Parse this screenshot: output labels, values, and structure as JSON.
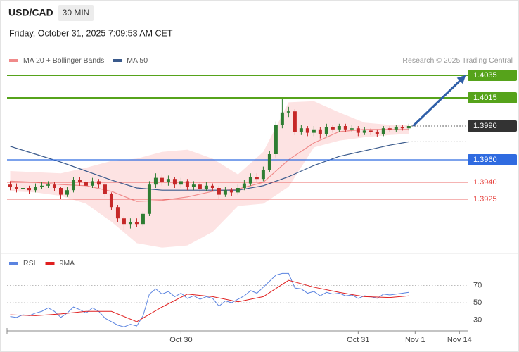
{
  "chart_data": [
    {
      "type": "candlestick",
      "title": "USD/CAD",
      "interval": "30 MIN",
      "subtitle": "Friday, October 31, 2025 7:09:53 AM CET",
      "credit": "Research © 2025 Trading Central",
      "up_color": "#2e7d32",
      "down_color": "#c62828",
      "xlim": [
        -0.5,
        72.3
      ],
      "ylim": [
        1.388,
        1.40425
      ],
      "open": [
        1.3938,
        1.3936,
        1.3934,
        1.3935,
        1.3933,
        1.3936,
        1.3937,
        1.3938,
        1.3935,
        1.3929,
        1.3933,
        1.3942,
        1.394,
        1.3937,
        1.3941,
        1.3938,
        1.393,
        1.3918,
        1.3908,
        1.3903,
        1.3905,
        1.3903,
        1.3912,
        1.3938,
        1.3944,
        1.394,
        1.3943,
        1.3938,
        1.3941,
        1.3936,
        1.3938,
        1.3934,
        1.3937,
        1.3935,
        1.3929,
        1.3933,
        1.3931,
        1.3935,
        1.3939,
        1.3945,
        1.3943,
        1.3951,
        1.3965,
        1.3991,
        1.4002,
        1.4003,
        1.3985,
        1.3988,
        1.3984,
        1.3987,
        1.3983,
        1.3989,
        1.3987,
        1.399,
        1.3987,
        1.3988,
        1.3984,
        1.3986,
        1.3985,
        1.3983,
        1.3988,
        1.3987,
        1.3989,
        1.3988
      ],
      "high": [
        1.3941,
        1.3939,
        1.3938,
        1.3937,
        1.3939,
        1.394,
        1.3941,
        1.394,
        1.3936,
        1.3936,
        1.3945,
        1.3945,
        1.3942,
        1.3944,
        1.3943,
        1.394,
        1.3931,
        1.392,
        1.391,
        1.3908,
        1.3908,
        1.3914,
        1.3941,
        1.3948,
        1.3947,
        1.3946,
        1.3945,
        1.3944,
        1.3943,
        1.3941,
        1.394,
        1.394,
        1.3939,
        1.3937,
        1.3936,
        1.3935,
        1.3938,
        1.3942,
        1.3948,
        1.3948,
        1.3954,
        1.3968,
        1.3994,
        1.4014,
        1.4007,
        1.4005,
        1.3991,
        1.399,
        1.399,
        1.3989,
        1.3992,
        1.3991,
        1.3992,
        1.3992,
        1.3991,
        1.399,
        1.3989,
        1.3988,
        1.3987,
        1.399,
        1.399,
        1.3991,
        1.3991,
        1.3992
      ],
      "low": [
        1.3933,
        1.3931,
        1.3931,
        1.393,
        1.3931,
        1.3934,
        1.3935,
        1.3932,
        1.3925,
        1.3927,
        1.3931,
        1.3937,
        1.3934,
        1.3935,
        1.3935,
        1.3927,
        1.3915,
        1.3905,
        1.3898,
        1.3899,
        1.39,
        1.3901,
        1.391,
        1.3935,
        1.3937,
        1.3937,
        1.3935,
        1.3935,
        1.3933,
        1.3933,
        1.3931,
        1.3932,
        1.3932,
        1.3925,
        1.3927,
        1.3928,
        1.3929,
        1.3933,
        1.3937,
        1.394,
        1.3941,
        1.3949,
        1.3962,
        1.3988,
        1.3998,
        1.3982,
        1.3982,
        1.3981,
        1.3981,
        1.3979,
        1.3981,
        1.3984,
        1.3985,
        1.3985,
        1.3985,
        1.3981,
        1.3982,
        1.3982,
        1.398,
        1.3981,
        1.3985,
        1.3985,
        1.3986,
        1.3986
      ],
      "close": [
        1.3936,
        1.3934,
        1.3935,
        1.3933,
        1.3936,
        1.3937,
        1.3938,
        1.3935,
        1.3929,
        1.3933,
        1.3942,
        1.394,
        1.3937,
        1.3941,
        1.3938,
        1.393,
        1.3918,
        1.3908,
        1.3903,
        1.3905,
        1.3903,
        1.3912,
        1.3938,
        1.3944,
        1.394,
        1.3943,
        1.3938,
        1.3941,
        1.3936,
        1.3938,
        1.3934,
        1.3937,
        1.3935,
        1.3929,
        1.3933,
        1.3931,
        1.3935,
        1.3939,
        1.3945,
        1.3943,
        1.3951,
        1.3965,
        1.3991,
        1.4002,
        1.4003,
        1.3985,
        1.3988,
        1.3984,
        1.3987,
        1.3983,
        1.3989,
        1.3987,
        1.399,
        1.3987,
        1.3988,
        1.3984,
        1.3986,
        1.3985,
        1.3983,
        1.3988,
        1.3987,
        1.3989,
        1.3988,
        1.399
      ],
      "series": [
        {
          "name": "MA 20 + Bollinger Bands",
          "color": "#f08a8a",
          "band_color": "#fde3e3",
          "x": [
            0,
            4,
            8,
            12,
            16,
            20,
            24,
            28,
            32,
            36,
            40,
            44,
            48,
            52,
            56,
            60,
            63
          ],
          "values": [
            1.3941,
            1.394,
            1.3938,
            1.3937,
            1.3932,
            1.3923,
            1.3924,
            1.3927,
            1.3932,
            1.3934,
            1.394,
            1.396,
            1.3975,
            1.3985,
            1.3987,
            1.3987,
            1.3987
          ],
          "upper": [
            1.395,
            1.3949,
            1.3948,
            1.3953,
            1.3959,
            1.3961,
            1.3967,
            1.3969,
            1.3961,
            1.3947,
            1.3967,
            1.4011,
            1.4012,
            1.4002,
            1.3993,
            1.3991,
            1.3991
          ],
          "lower": [
            1.3932,
            1.3931,
            1.3928,
            1.3921,
            1.3905,
            1.3886,
            1.3882,
            1.3884,
            1.3896,
            1.3919,
            1.3921,
            1.3936,
            1.3971,
            1.3977,
            1.398,
            1.3982,
            1.3983
          ]
        },
        {
          "name": "MA 50",
          "color": "#3a5a8c",
          "x": [
            0,
            4,
            8,
            12,
            16,
            20,
            24,
            28,
            32,
            36,
            40,
            44,
            48,
            52,
            56,
            60,
            63
          ],
          "values": [
            1.3972,
            1.3965,
            1.3958,
            1.395,
            1.3942,
            1.3935,
            1.3933,
            1.3933,
            1.3933,
            1.3933,
            1.3937,
            1.3945,
            1.3955,
            1.3963,
            1.3968,
            1.3973,
            1.3976
          ]
        }
      ],
      "levels": [
        {
          "value": 1.4035,
          "label": "1.4035",
          "color": "#56a31b",
          "style": "box"
        },
        {
          "value": 1.4015,
          "label": "1.4015",
          "color": "#56a31b",
          "style": "box"
        },
        {
          "value": 1.399,
          "label": "1.3990",
          "color": "#333333",
          "style": "current"
        },
        {
          "value": 1.396,
          "label": "1.3960",
          "color": "#2f6be0",
          "style": "box"
        },
        {
          "value": 1.394,
          "label": "1.3940",
          "color": "#e53935",
          "style": "text"
        },
        {
          "value": 1.3925,
          "label": "1.3925",
          "color": "#e53935",
          "style": "text"
        }
      ]
    },
    {
      "type": "line",
      "xlim": [
        -0.5,
        72.3
      ],
      "ylim": [
        20,
        100
      ],
      "yticks": [
        70,
        50,
        30
      ],
      "xticks": [
        {
          "value": 27,
          "label": "Oct 30"
        },
        {
          "value": 55,
          "label": "Oct 31"
        },
        {
          "value": 64,
          "label": "Nov 1"
        },
        {
          "value": 71,
          "label": "Nov 14"
        }
      ],
      "series": [
        {
          "name": "RSI",
          "color": "#5b84e0",
          "values": [
            34,
            33,
            36,
            35,
            38,
            40,
            44,
            40,
            33,
            38,
            45,
            42,
            38,
            44,
            40,
            32,
            28,
            24,
            22,
            25,
            23,
            35,
            60,
            66,
            60,
            63,
            57,
            61,
            55,
            58,
            54,
            57,
            55,
            46,
            52,
            50,
            54,
            58,
            64,
            61,
            68,
            75,
            82,
            84,
            84,
            67,
            66,
            61,
            63,
            58,
            62,
            60,
            61,
            58,
            59,
            55,
            58,
            57,
            55,
            60,
            59,
            60,
            61,
            62
          ]
        },
        {
          "name": "9MA",
          "color": "#e02020",
          "x": [
            0,
            4,
            8,
            12,
            16,
            20,
            24,
            28,
            32,
            36,
            40,
            44,
            48,
            52,
            56,
            60,
            63
          ],
          "values": [
            36,
            35,
            37,
            40,
            40,
            28,
            45,
            60,
            57,
            51,
            57,
            76,
            68,
            62,
            57,
            56,
            58
          ]
        }
      ]
    }
  ]
}
